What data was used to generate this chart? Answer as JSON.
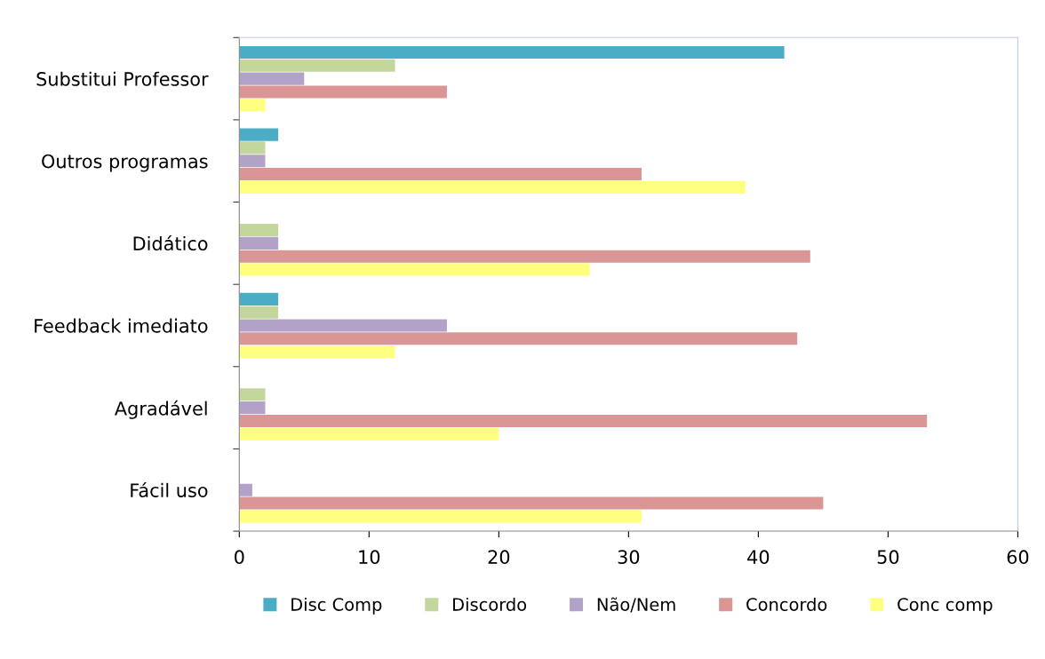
{
  "chart_data": {
    "type": "bar",
    "orientation": "horizontal",
    "categories": [
      "Substitui Professor",
      "Outros programas",
      "Didático",
      "Feedback imediato",
      "Agradável",
      "Fácil uso"
    ],
    "series": [
      {
        "name": "Disc Comp",
        "color": "#4bacc6",
        "values": [
          42,
          3,
          0,
          3,
          0,
          0
        ]
      },
      {
        "name": "Discordo",
        "color": "#c3d69b",
        "values": [
          12,
          2,
          3,
          3,
          2,
          0
        ]
      },
      {
        "name": "Não/Nem",
        "color": "#b2a2c7",
        "values": [
          5,
          2,
          3,
          16,
          2,
          1
        ]
      },
      {
        "name": "Concordo",
        "color": "#d99694",
        "values": [
          16,
          31,
          44,
          43,
          53,
          45
        ]
      },
      {
        "name": "Conc comp",
        "color": "#ffff80",
        "values": [
          2,
          39,
          27,
          12,
          20,
          31
        ]
      }
    ],
    "xlim": [
      0,
      60
    ],
    "xticks": [
      0,
      10,
      20,
      30,
      40,
      50,
      60
    ],
    "grid": false,
    "legend": "bottom"
  }
}
